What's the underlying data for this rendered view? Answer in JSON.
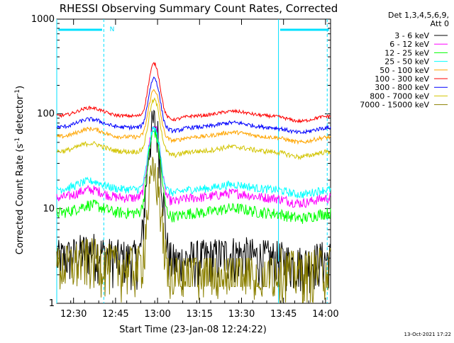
{
  "chart_data": {
    "type": "line",
    "title": "RHESSI Observing Summary Count Rates, Corrected",
    "xlabel": "Start Time (23-Jan-08 12:24:22)",
    "ylabel_main": "Corrected Count Rate (s",
    "ylabel_sup1": "-1",
    "ylabel_mid": " detector",
    "ylabel_sup2": "-1",
    "ylabel_end": ")",
    "y_scale": "log",
    "ylim": [
      1,
      1000
    ],
    "xlim_minutes": [
      12.4,
      14.03
    ],
    "x_ticks": [
      {
        "label": "12:30",
        "value": 12.5
      },
      {
        "label": "12:45",
        "value": 12.75
      },
      {
        "label": "13:00",
        "value": 13.0
      },
      {
        "label": "13:15",
        "value": 13.25
      },
      {
        "label": "13:30",
        "value": 13.5
      },
      {
        "label": "13:45",
        "value": 13.75
      },
      {
        "label": "14:00",
        "value": 14.0
      }
    ],
    "y_ticks": [
      {
        "label": "1",
        "value": 1
      },
      {
        "label": "10",
        "value": 10
      },
      {
        "label": "100",
        "value": 100
      },
      {
        "label": "1000",
        "value": 1000
      }
    ],
    "legend_header": [
      "Det 1,3,4,5,6,9,",
      "Att 0"
    ],
    "legend_position": "right",
    "attenuator_flag": "N",
    "series": [
      {
        "name": "3 - 6 keV",
        "color": "#000000",
        "base": 3.0,
        "peak": 80,
        "noise": 0.55
      },
      {
        "name": "6 - 12 keV",
        "color": "#ff00ff",
        "base": 13,
        "peak": 75,
        "noise": 0.12
      },
      {
        "name": "12 - 25 keV",
        "color": "#00ff00",
        "base": 9,
        "peak": 65,
        "noise": 0.14
      },
      {
        "name": "25 - 50 keV",
        "color": "#00ffff",
        "base": 16,
        "peak": 70,
        "noise": 0.1
      },
      {
        "name": "50 - 100 keV",
        "color": "#ffa500",
        "base": 57,
        "peak": 180,
        "noise": 0.05
      },
      {
        "name": "100 - 300 keV",
        "color": "#ff0000",
        "base": 95,
        "peak": 340,
        "noise": 0.04
      },
      {
        "name": "300 - 800 keV",
        "color": "#0000ff",
        "base": 72,
        "peak": 240,
        "noise": 0.05
      },
      {
        "name": "800 - 7000 keV",
        "color": "#d2c400",
        "base": 40,
        "peak": 140,
        "noise": 0.06
      },
      {
        "name": "7000 - 15000 keV",
        "color": "#8b8000",
        "base": 2.5,
        "peak": 24,
        "noise": 0.6
      }
    ],
    "vertical_markers": [
      12.4,
      12.68,
      13.72,
      14.01
    ],
    "attenuator_segments": [
      [
        12.41,
        12.67
      ],
      [
        13.73,
        14.02
      ]
    ],
    "footer_date": "13-Oct-2021 17:22"
  }
}
